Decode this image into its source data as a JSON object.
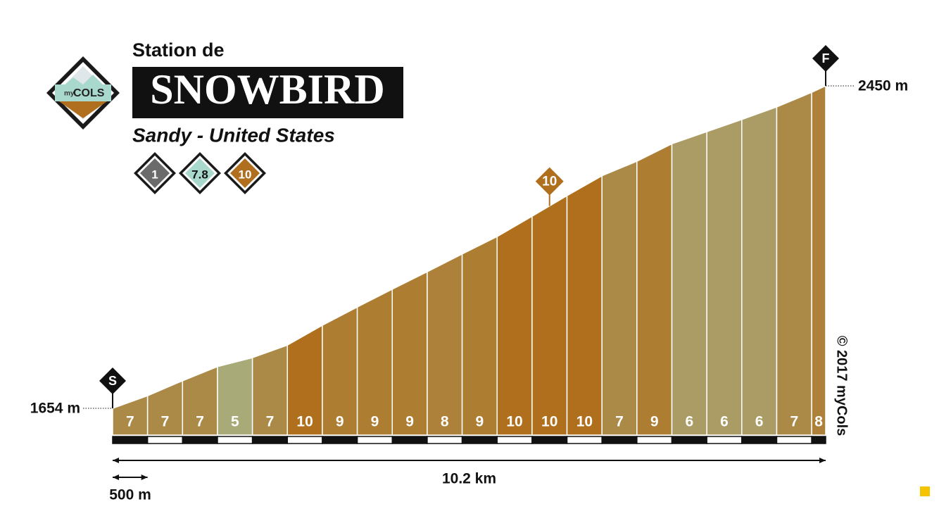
{
  "header": {
    "subtitle": "Station de",
    "title": "SNOWBIRD",
    "location": "Sandy - United States",
    "logo_small": "my",
    "logo_main": "COLS",
    "copyright": "© 2017 myCols"
  },
  "badges": [
    {
      "label": "1",
      "color": "#6b6b6b"
    },
    {
      "label": "7.8",
      "color": "#a9d9cc"
    },
    {
      "label": "10",
      "color": "#b06f1f"
    }
  ],
  "chart_data": {
    "type": "climb-profile",
    "x": [
      0,
      0.5,
      1,
      1.5,
      2,
      2.5,
      3,
      3.5,
      4,
      4.5,
      5,
      5.5,
      6,
      6.5,
      7,
      7.5,
      8,
      8.5,
      9,
      9.5,
      10,
      10.2
    ],
    "elevations": [
      1654,
      1685,
      1722,
      1757,
      1779,
      1810,
      1859,
      1904,
      1948,
      1991,
      2035,
      2078,
      2128,
      2179,
      2228,
      2264,
      2307,
      2337,
      2367,
      2398,
      2434,
      2450
    ],
    "gradients": [
      7,
      7,
      7,
      5,
      7,
      10,
      9,
      9,
      9,
      8,
      9,
      10,
      10,
      10,
      7,
      9,
      6,
      6,
      6,
      7,
      8
    ],
    "gradient_colors": {
      "5": "#a8aa78",
      "6": "#aa9c64",
      "7": "#ab8a48",
      "8": "#ad8139",
      "9": "#ad7d32",
      "10": "#b06f1c"
    },
    "xlim": [
      0,
      10.2
    ],
    "ylim": [
      1588,
      2450
    ],
    "yticks": [
      {
        "value": 1654,
        "label": "1654 m"
      },
      {
        "value": 2450,
        "label": "2450 m"
      }
    ],
    "start_label": "S",
    "finish_label": "F",
    "max_marker": {
      "label": "10",
      "x": 6.25
    },
    "distance": {
      "value": 10.2,
      "label": "10.2 km"
    },
    "scale": {
      "value": 0.5,
      "label": "500 m"
    }
  }
}
